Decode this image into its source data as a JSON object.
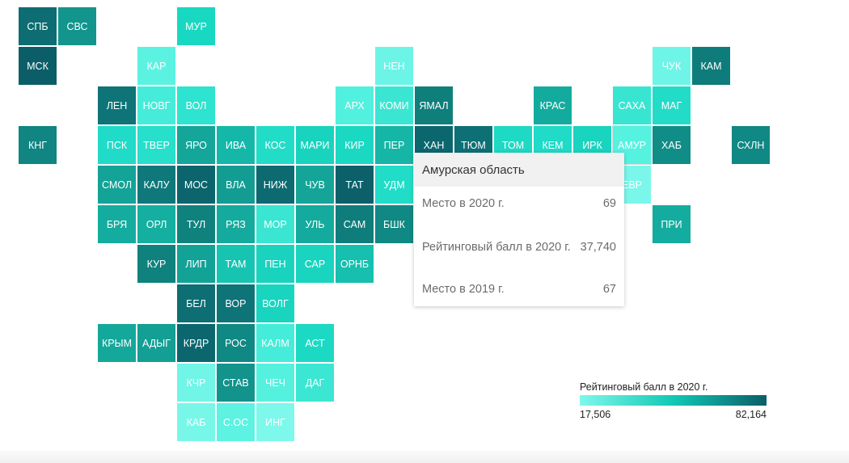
{
  "map": {
    "regions": [
      {
        "label": "СПБ",
        "row": 0,
        "col": 0,
        "value": 74,
        "color": "#0d6d72"
      },
      {
        "label": "СВС",
        "row": 0,
        "col": 1,
        "value": 60,
        "color": "#12958d"
      },
      {
        "label": "МУР",
        "row": 0,
        "col": 4,
        "value": 38,
        "color": "#18d8c2"
      },
      {
        "label": "МСК",
        "row": 1,
        "col": 0,
        "value": 82,
        "color": "#0b5e68"
      },
      {
        "label": "КАР",
        "row": 1,
        "col": 3,
        "value": 25,
        "color": "#5cf2e2"
      },
      {
        "label": "НЕН",
        "row": 1,
        "col": 9,
        "value": 23,
        "color": "#6cf4e6"
      },
      {
        "label": "ЧУК",
        "row": 1,
        "col": 16,
        "value": 22,
        "color": "#6ef5e7"
      },
      {
        "label": "КАМ",
        "row": 1,
        "col": 17,
        "value": 68,
        "color": "#0e7c7b"
      },
      {
        "label": "ЛЕН",
        "row": 2,
        "col": 2,
        "value": 72,
        "color": "#0e7477"
      },
      {
        "label": "НОВГ",
        "row": 2,
        "col": 3,
        "value": 28,
        "color": "#45ecd9"
      },
      {
        "label": "ВОЛ",
        "row": 2,
        "col": 4,
        "value": 33,
        "color": "#2ee3cf"
      },
      {
        "label": "АРХ",
        "row": 2,
        "col": 8,
        "value": 27,
        "color": "#52f0de"
      },
      {
        "label": "КОМИ",
        "row": 2,
        "col": 9,
        "value": 30,
        "color": "#3ae6d2"
      },
      {
        "label": "ЯМАЛ",
        "row": 2,
        "col": 10,
        "value": 67,
        "color": "#0f7f7c"
      },
      {
        "label": "КРАС",
        "row": 2,
        "col": 13,
        "value": 52,
        "color": "#14ab9f"
      },
      {
        "label": "САХА",
        "row": 2,
        "col": 15,
        "value": 30,
        "color": "#38e5d1"
      },
      {
        "label": "МАГ",
        "row": 2,
        "col": 16,
        "value": 36,
        "color": "#22dcc8"
      },
      {
        "label": "КНГ",
        "row": 3,
        "col": 0,
        "value": 65,
        "color": "#108581"
      },
      {
        "label": "ПСК",
        "row": 3,
        "col": 2,
        "value": 36,
        "color": "#20dbc7"
      },
      {
        "label": "ТВЕР",
        "row": 3,
        "col": 3,
        "value": 34,
        "color": "#27dfca"
      },
      {
        "label": "ЯРО",
        "row": 3,
        "col": 4,
        "value": 55,
        "color": "#14a698"
      },
      {
        "label": "ИВА",
        "row": 3,
        "col": 5,
        "value": 48,
        "color": "#15b8a8"
      },
      {
        "label": "КОС",
        "row": 3,
        "col": 6,
        "value": 36,
        "color": "#21dcc7"
      },
      {
        "label": "МАРИ",
        "row": 3,
        "col": 7,
        "value": 40,
        "color": "#18d3be"
      },
      {
        "label": "КИР",
        "row": 3,
        "col": 8,
        "value": 38,
        "color": "#1bd8c3"
      },
      {
        "label": "ПЕР",
        "row": 3,
        "col": 9,
        "value": 49,
        "color": "#15b6a6"
      },
      {
        "label": "ХАН",
        "row": 3,
        "col": 10,
        "value": 78,
        "color": "#0c666e"
      },
      {
        "label": "ТЮМ",
        "row": 3,
        "col": 11,
        "value": 73,
        "color": "#0d7075"
      },
      {
        "label": "ТОМ",
        "row": 3,
        "col": 12,
        "value": 38,
        "color": "#1ed9c4"
      },
      {
        "label": "КЕМ",
        "row": 3,
        "col": 13,
        "value": 36,
        "color": "#20dbc7"
      },
      {
        "label": "ИРК",
        "row": 3,
        "col": 14,
        "value": 40,
        "color": "#19d4bf"
      },
      {
        "label": "АМУР",
        "row": 3,
        "col": 15,
        "value": 37.74,
        "color": "#55f2e0"
      },
      {
        "label": "ХАБ",
        "row": 3,
        "col": 16,
        "value": 62,
        "color": "#118d87"
      },
      {
        "label": "СХЛН",
        "row": 3,
        "col": 18,
        "value": 64,
        "color": "#108883"
      },
      {
        "label": "СМОЛ",
        "row": 4,
        "col": 2,
        "value": 56,
        "color": "#13a397"
      },
      {
        "label": "КАЛУ",
        "row": 4,
        "col": 3,
        "value": 70,
        "color": "#0e787a"
      },
      {
        "label": "МОС",
        "row": 4,
        "col": 4,
        "value": 79,
        "color": "#0c646c"
      },
      {
        "label": "ВЛА",
        "row": 4,
        "col": 5,
        "value": 58,
        "color": "#139c92"
      },
      {
        "label": "НИЖ",
        "row": 4,
        "col": 6,
        "value": 77,
        "color": "#0d6a71"
      },
      {
        "label": "ЧУВ",
        "row": 4,
        "col": 7,
        "value": 55,
        "color": "#14a598"
      },
      {
        "label": "ТАТ",
        "row": 4,
        "col": 8,
        "value": 81,
        "color": "#0b606a"
      },
      {
        "label": "УДМ",
        "row": 4,
        "col": 9,
        "value": 36,
        "color": "#21dcc7"
      },
      {
        "label": "ЕВР",
        "row": 4,
        "col": 15,
        "value": 19,
        "color": "#7af7ea"
      },
      {
        "label": "БРЯ",
        "row": 5,
        "col": 2,
        "value": 52,
        "color": "#14ac9f"
      },
      {
        "label": "ОРЛ",
        "row": 5,
        "col": 3,
        "value": 51,
        "color": "#14afa1"
      },
      {
        "label": "ТУЛ",
        "row": 5,
        "col": 4,
        "value": 66,
        "color": "#0f827e"
      },
      {
        "label": "РЯЗ",
        "row": 5,
        "col": 5,
        "value": 52,
        "color": "#14ab9e"
      },
      {
        "label": "МОР",
        "row": 5,
        "col": 6,
        "value": 30,
        "color": "#3ae6d2"
      },
      {
        "label": "УЛЬ",
        "row": 5,
        "col": 7,
        "value": 52,
        "color": "#14ab9e"
      },
      {
        "label": "САМ",
        "row": 5,
        "col": 8,
        "value": 68,
        "color": "#0f7d7c"
      },
      {
        "label": "БШК",
        "row": 5,
        "col": 9,
        "value": 64,
        "color": "#108883"
      },
      {
        "label": "ПРИ",
        "row": 5,
        "col": 16,
        "value": 52,
        "color": "#14ac9f"
      },
      {
        "label": "КУР",
        "row": 6,
        "col": 3,
        "value": 66,
        "color": "#0f827e"
      },
      {
        "label": "ЛИП",
        "row": 6,
        "col": 4,
        "value": 56,
        "color": "#13a296"
      },
      {
        "label": "ТАМ",
        "row": 6,
        "col": 5,
        "value": 44,
        "color": "#17c4b2"
      },
      {
        "label": "ПЕН",
        "row": 6,
        "col": 6,
        "value": 40,
        "color": "#19d3be"
      },
      {
        "label": "САР",
        "row": 6,
        "col": 7,
        "value": 40,
        "color": "#19d4bf"
      },
      {
        "label": "ОРНБ",
        "row": 6,
        "col": 8,
        "value": 46,
        "color": "#16bfae"
      },
      {
        "label": "БЕЛ",
        "row": 7,
        "col": 4,
        "value": 74,
        "color": "#0d6e73"
      },
      {
        "label": "ВОР",
        "row": 7,
        "col": 5,
        "value": 72,
        "color": "#0e7478"
      },
      {
        "label": "ВОЛГ",
        "row": 7,
        "col": 6,
        "value": 40,
        "color": "#19d4bf"
      },
      {
        "label": "КРЫМ",
        "row": 8,
        "col": 2,
        "value": 54,
        "color": "#14a89b"
      },
      {
        "label": "АДЫГ",
        "row": 8,
        "col": 3,
        "value": 57,
        "color": "#139f94"
      },
      {
        "label": "КРДР",
        "row": 8,
        "col": 4,
        "value": 78,
        "color": "#0c666e"
      },
      {
        "label": "РОС",
        "row": 8,
        "col": 5,
        "value": 64,
        "color": "#108883"
      },
      {
        "label": "КАЛМ",
        "row": 8,
        "col": 6,
        "value": 28,
        "color": "#45ecd9"
      },
      {
        "label": "АСТ",
        "row": 8,
        "col": 7,
        "value": 38,
        "color": "#1cd9c4"
      },
      {
        "label": "КЧР",
        "row": 9,
        "col": 4,
        "value": 22,
        "color": "#70f5e7"
      },
      {
        "label": "СТАВ",
        "row": 9,
        "col": 5,
        "value": 60,
        "color": "#12938c"
      },
      {
        "label": "ЧЕЧ",
        "row": 9,
        "col": 6,
        "value": 26,
        "color": "#55f1df"
      },
      {
        "label": "ДАГ",
        "row": 9,
        "col": 7,
        "value": 30,
        "color": "#3be6d2"
      },
      {
        "label": "КАБ",
        "row": 10,
        "col": 4,
        "value": 20,
        "color": "#78f7e9"
      },
      {
        "label": "С.ОС",
        "row": 10,
        "col": 5,
        "value": 25,
        "color": "#5df2e2"
      },
      {
        "label": "ИНГ",
        "row": 10,
        "col": 6,
        "value": 18,
        "color": "#7ef8eb"
      }
    ]
  },
  "tooltip": {
    "title": "Амурская область",
    "rows": [
      {
        "label": "Место в 2020 г.",
        "value": "69"
      },
      {
        "label": "Рейтинговый балл в 2020 г.",
        "value": "37,740"
      },
      {
        "label": "Место в 2019 г.",
        "value": "67"
      }
    ]
  },
  "legend": {
    "title": "Рейтинговый балл в 2020 г.",
    "min_label": "17,506",
    "max_label": "82,164",
    "color_low": "#7ff8ec",
    "color_high": "#0b5e68"
  }
}
